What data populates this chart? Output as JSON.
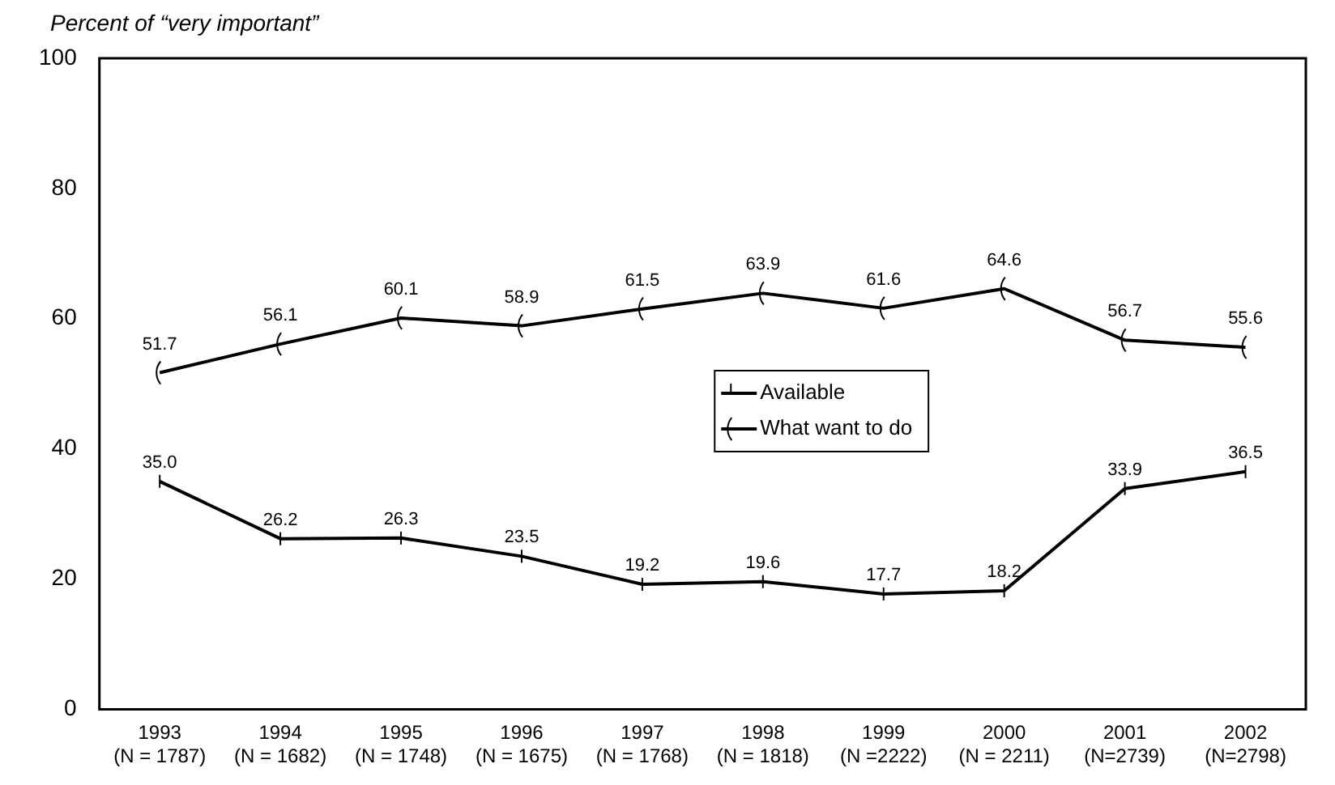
{
  "chart_data": {
    "type": "line",
    "ylabel": "Percent of “very important”",
    "categories": [
      "1993\n(N = 1787)",
      "1994\n(N = 1682)",
      "1995\n(N = 1748)",
      "1996\n(N = 1675)",
      "1997\n(N = 1768)",
      "1998\n(N = 1818)",
      "1999\n(N =2222)",
      "2000\n(N = 2211)",
      "2001\n(N=2739)",
      "2002\n(N=2798)"
    ],
    "series": [
      {
        "name": "Available",
        "color": "#000000",
        "values": [
          35.0,
          26.2,
          26.3,
          23.5,
          19.2,
          19.6,
          17.7,
          18.2,
          33.9,
          36.5
        ],
        "value_labels": [
          "35.0",
          "26.2",
          "26.3",
          "23.5",
          "19.2",
          "19.6",
          "17.7",
          "18.2",
          "33.9",
          "36.5"
        ]
      },
      {
        "name": "What want to do",
        "color": "#000000",
        "values": [
          51.7,
          56.1,
          60.1,
          58.9,
          61.5,
          63.9,
          61.6,
          64.6,
          56.7,
          55.6
        ],
        "value_labels": [
          "51.7",
          "56.1",
          "60.1",
          "58.9",
          "61.5",
          "63.9",
          "61.6",
          "64.6",
          "56.7",
          "55.6"
        ]
      }
    ],
    "ylim": [
      0,
      100
    ],
    "yticks": [
      0,
      20,
      40,
      60,
      80,
      100
    ],
    "grid": false,
    "legend": "center",
    "line_style": "solid"
  }
}
